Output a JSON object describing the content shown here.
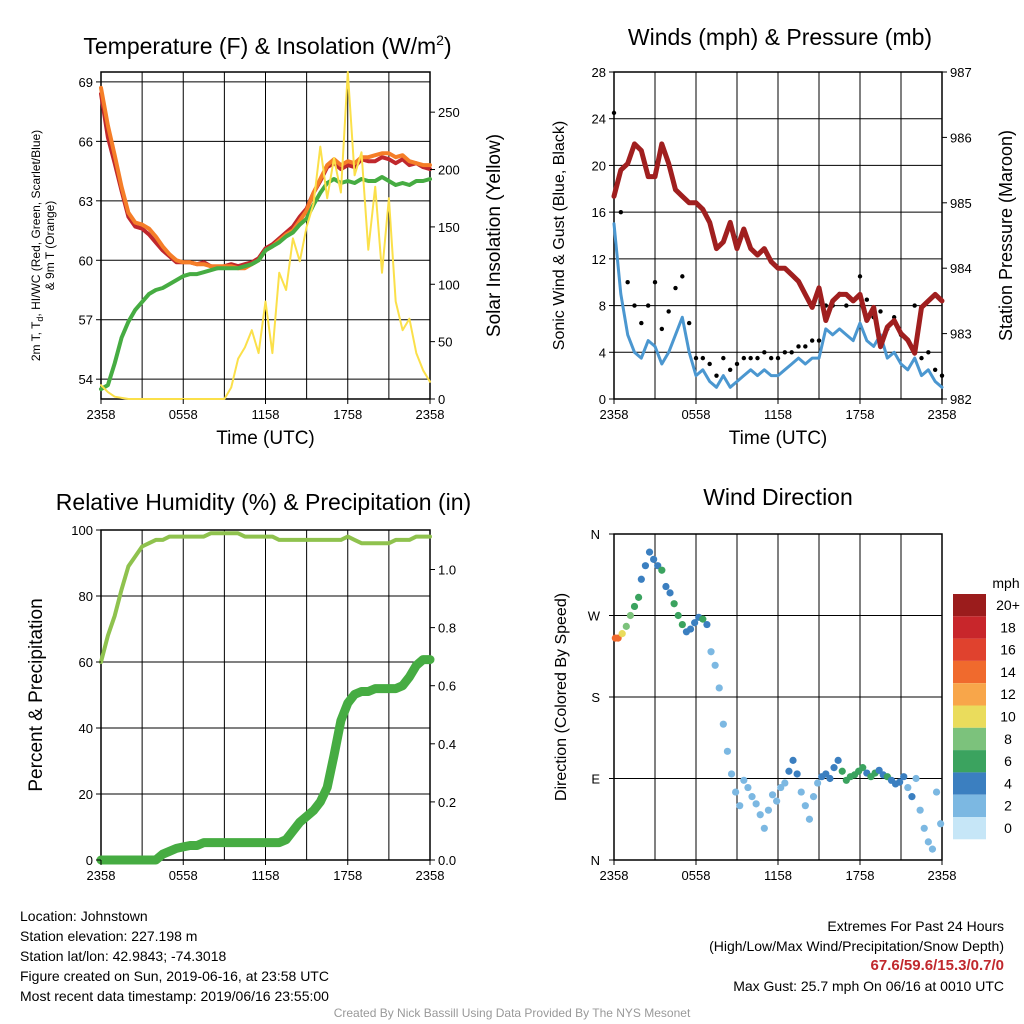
{
  "colors": {
    "red": "#c0282d",
    "orange": "#f57e28",
    "green": "#46ac42",
    "light_green": "#8fc24e",
    "yellow": "#fbe04a",
    "blue": "#4b97d0",
    "black": "#000000",
    "maroon": "#a01f1f"
  },
  "time_ticks": [
    "2358",
    "0558",
    "1158",
    "1758",
    "2358"
  ],
  "chart_data": [
    {
      "type": "line",
      "title": "Temperature (F) & Insolation (W/m²)",
      "xlabel": "Time (UTC)",
      "ylabel": "2m T, Td, HI/WC (Red, Green, Scarlet/Blue) & 9m T (Orange)",
      "ylabel_lines": [
        "2m T, T",
        "d",
        ", HI/WC (Red, Green, Scarlet/Blue)",
        "& 9m T (Orange)"
      ],
      "y2label": "Solar Insolation (Yellow)",
      "x_range_hours": [
        0,
        24
      ],
      "ylim": [
        53,
        69.5
      ],
      "y2lim": [
        0,
        285
      ],
      "y_ticks": [
        54,
        57,
        60,
        63,
        66,
        69
      ],
      "y2_ticks": [
        0,
        50,
        100,
        150,
        200,
        250
      ],
      "x": [
        0,
        0.5,
        1,
        1.5,
        2,
        2.5,
        3,
        3.5,
        4,
        4.5,
        5,
        5.5,
        6,
        6.5,
        7,
        7.5,
        8,
        8.5,
        9,
        9.5,
        10,
        10.5,
        11,
        11.5,
        12,
        12.5,
        13,
        13.5,
        14,
        14.5,
        15,
        15.5,
        16,
        16.5,
        17,
        17.5,
        18,
        18.5,
        19,
        19.5,
        20,
        20.5,
        21,
        21.5,
        22,
        22.5,
        23,
        23.5,
        24
      ],
      "series": [
        {
          "name": "2m T",
          "color_key": "red",
          "values": [
            68.4,
            66.2,
            64.9,
            63.5,
            62.2,
            61.7,
            61.6,
            61.3,
            60.9,
            60.5,
            60.2,
            59.9,
            59.9,
            59.9,
            59.8,
            59.9,
            59.7,
            59.6,
            59.7,
            59.8,
            59.7,
            59.8,
            59.9,
            60.1,
            60.6,
            60.8,
            61.1,
            61.4,
            61.7,
            62.2,
            62.6,
            63.4,
            64.0,
            64.7,
            64.9,
            64.6,
            64.8,
            64.7,
            65.1,
            65.0,
            65.0,
            65.2,
            65.1,
            64.9,
            65.1,
            64.8,
            64.9,
            64.7,
            64.6
          ]
        },
        {
          "name": "9m T",
          "color_key": "orange",
          "values": [
            68.7,
            66.8,
            65.3,
            63.7,
            62.4,
            61.9,
            61.8,
            61.6,
            61.2,
            60.7,
            60.3,
            60.0,
            59.9,
            59.9,
            59.8,
            59.8,
            59.7,
            59.7,
            59.7,
            59.7,
            59.6,
            59.6,
            59.8,
            60.0,
            60.5,
            60.7,
            61.0,
            61.3,
            61.5,
            62.0,
            62.5,
            63.4,
            64.1,
            64.8,
            65.1,
            64.8,
            65.0,
            64.9,
            65.2,
            65.2,
            65.3,
            65.4,
            65.4,
            65.2,
            65.3,
            65.0,
            64.9,
            64.8,
            64.8
          ]
        },
        {
          "name": "Td",
          "color_key": "green",
          "values": [
            53.5,
            53.7,
            54.8,
            56.1,
            56.9,
            57.5,
            57.9,
            58.3,
            58.5,
            58.6,
            58.8,
            59.0,
            59.2,
            59.3,
            59.3,
            59.4,
            59.5,
            59.6,
            59.6,
            59.6,
            59.6,
            59.7,
            59.8,
            60.0,
            60.5,
            60.7,
            60.9,
            61.2,
            61.4,
            61.8,
            62.1,
            62.8,
            63.4,
            63.9,
            64.1,
            63.9,
            64.0,
            63.9,
            64.1,
            64.0,
            64.0,
            64.2,
            64.0,
            63.8,
            63.9,
            63.8,
            64.0,
            64.0,
            64.1
          ]
        },
        {
          "name": "Solar Insolation",
          "color_key": "yellow",
          "axis": "right",
          "values": [
            12,
            6,
            2,
            1,
            0,
            0,
            0,
            0,
            0,
            0,
            0,
            0,
            0,
            0,
            0,
            0,
            0,
            0,
            0,
            10,
            35,
            45,
            60,
            40,
            85,
            40,
            110,
            95,
            140,
            120,
            150,
            170,
            220,
            175,
            210,
            180,
            285,
            195,
            215,
            130,
            185,
            110,
            175,
            85,
            60,
            70,
            40,
            25,
            15
          ]
        }
      ]
    },
    {
      "type": "line",
      "title": "Winds (mph) & Pressure (mb)",
      "xlabel": "Time (UTC)",
      "ylabel": "Sonic Wind & Gust (Blue, Black)",
      "y2label": "Station Pressure (Maroon)",
      "x_range_hours": [
        0,
        24
      ],
      "ylim": [
        0,
        28
      ],
      "y2lim": [
        982,
        987
      ],
      "y_ticks": [
        0,
        4,
        8,
        12,
        16,
        20,
        24,
        28
      ],
      "y2_ticks": [
        982,
        983,
        984,
        985,
        986,
        987
      ],
      "x": [
        0,
        0.5,
        1,
        1.5,
        2,
        2.5,
        3,
        3.5,
        4,
        4.5,
        5,
        5.5,
        6,
        6.5,
        7,
        7.5,
        8,
        8.5,
        9,
        9.5,
        10,
        10.5,
        11,
        11.5,
        12,
        12.5,
        13,
        13.5,
        14,
        14.5,
        15,
        15.5,
        16,
        16.5,
        17,
        17.5,
        18,
        18.5,
        19,
        19.5,
        20,
        20.5,
        21,
        21.5,
        22,
        22.5,
        23,
        23.5,
        24
      ],
      "series": [
        {
          "name": "Sonic Wind",
          "color_key": "blue",
          "values": [
            15.0,
            9.0,
            5.5,
            4.0,
            3.5,
            5.0,
            4.5,
            3.0,
            4.0,
            5.5,
            7.0,
            4.0,
            2.0,
            2.5,
            1.5,
            1.0,
            2.0,
            1.0,
            1.5,
            2.0,
            2.5,
            2.0,
            2.5,
            2.0,
            2.0,
            2.5,
            3.0,
            3.5,
            3.0,
            3.5,
            3.5,
            6.0,
            5.5,
            6.0,
            5.5,
            5.0,
            6.5,
            5.0,
            4.5,
            5.5,
            3.5,
            4.0,
            3.0,
            2.5,
            3.5,
            2.0,
            2.5,
            1.5,
            1.0
          ]
        },
        {
          "name": "Gust",
          "color_key": "black",
          "style": "points",
          "values": [
            24.5,
            16.0,
            10.0,
            8.0,
            6.5,
            8.0,
            10.0,
            6.0,
            7.5,
            9.5,
            10.5,
            6.5,
            3.5,
            3.5,
            3.0,
            2.0,
            3.5,
            2.5,
            3.0,
            3.5,
            3.5,
            3.5,
            4.0,
            3.5,
            3.5,
            4.0,
            4.0,
            4.5,
            4.5,
            5.0,
            5.0,
            8.0,
            8.0,
            9.0,
            8.0,
            8.5,
            10.5,
            8.5,
            7.0,
            7.5,
            6.0,
            7.0,
            5.5,
            5.0,
            8.0,
            3.5,
            4.0,
            2.5,
            2.0
          ]
        },
        {
          "name": "Station Pressure",
          "color_key": "maroon",
          "axis": "right",
          "values": [
            985.1,
            985.5,
            985.6,
            985.9,
            985.8,
            985.4,
            985.4,
            985.9,
            985.6,
            985.2,
            985.1,
            985.0,
            985.0,
            984.9,
            984.7,
            984.3,
            984.4,
            984.7,
            984.3,
            984.6,
            984.3,
            984.2,
            984.3,
            984.1,
            984.0,
            984.0,
            983.9,
            983.8,
            983.6,
            983.4,
            983.7,
            983.2,
            983.5,
            983.6,
            983.6,
            983.5,
            983.6,
            983.2,
            983.4,
            982.8,
            983.1,
            983.2,
            983.0,
            982.9,
            982.7,
            983.4,
            983.5,
            983.6,
            983.5
          ]
        }
      ]
    },
    {
      "type": "line",
      "title": "Relative Humidity (%) & Precipitation (in)",
      "ylabel": "Percent & Precipitation",
      "x_range_hours": [
        0,
        24
      ],
      "ylim": [
        0,
        100
      ],
      "y2lim": [
        0,
        1.136
      ],
      "y_ticks": [
        0,
        20,
        40,
        60,
        80,
        100
      ],
      "y2_ticks": [
        0.0,
        0.2,
        0.4,
        0.6,
        0.8,
        1.0
      ],
      "x": [
        0,
        0.5,
        1,
        1.5,
        2,
        2.5,
        3,
        3.5,
        4,
        4.5,
        5,
        5.5,
        6,
        6.5,
        7,
        7.5,
        8,
        8.5,
        9,
        9.5,
        10,
        10.5,
        11,
        11.5,
        12,
        12.5,
        13,
        13.5,
        14,
        14.5,
        15,
        15.5,
        16,
        16.5,
        17,
        17.5,
        18,
        18.5,
        19,
        19.5,
        20,
        20.5,
        21,
        21.5,
        22,
        22.5,
        23,
        23.5,
        24
      ],
      "series": [
        {
          "name": "Relative Humidity",
          "color_key": "light_green",
          "values": [
            60,
            68,
            74,
            82,
            89,
            92,
            95,
            96,
            97,
            97,
            98,
            98,
            98,
            98,
            98,
            98,
            99,
            99,
            99,
            99,
            99,
            98,
            98,
            98,
            98,
            98,
            97,
            97,
            97,
            97,
            97,
            97,
            97,
            97,
            97,
            97,
            98,
            97,
            96,
            96,
            96,
            96,
            96,
            97,
            97,
            97,
            98,
            98,
            98
          ]
        },
        {
          "name": "Precipitation",
          "color_key": "green",
          "axis": "right",
          "values": [
            0.0,
            0.0,
            0.0,
            0.0,
            0.0,
            0.0,
            0.0,
            0.0,
            0.0,
            0.02,
            0.03,
            0.04,
            0.045,
            0.05,
            0.05,
            0.06,
            0.06,
            0.06,
            0.06,
            0.06,
            0.06,
            0.06,
            0.06,
            0.06,
            0.06,
            0.06,
            0.06,
            0.07,
            0.1,
            0.13,
            0.15,
            0.17,
            0.2,
            0.25,
            0.36,
            0.48,
            0.54,
            0.57,
            0.58,
            0.58,
            0.59,
            0.59,
            0.59,
            0.59,
            0.6,
            0.63,
            0.67,
            0.69,
            0.69
          ]
        }
      ]
    },
    {
      "type": "scatter",
      "title": "Wind Direction",
      "ylabel": "Direction (Colored By Speed)",
      "x_range_hours": [
        0,
        24
      ],
      "y_ticks": [
        "N",
        "E",
        "S",
        "W",
        "N"
      ],
      "ylim_degrees": [
        0,
        360
      ],
      "legend_title": "mph",
      "legend_labels": [
        "20+",
        "18",
        "16",
        "14",
        "12",
        "10",
        "8",
        "6",
        "4",
        "2",
        "0"
      ],
      "legend_colors": [
        "#9b1c1c",
        "#c8262b",
        "#e0422e",
        "#f06a2d",
        "#f8a64a",
        "#eadc5c",
        "#7cc27c",
        "#3ba35f",
        "#3b7fc0",
        "#7cb8e2",
        "#c6e6f7"
      ],
      "x": [
        0.1,
        0.3,
        0.6,
        0.9,
        1.2,
        1.5,
        1.8,
        2.0,
        2.3,
        2.6,
        2.9,
        3.2,
        3.5,
        3.8,
        4.1,
        4.4,
        4.7,
        5.0,
        5.3,
        5.6,
        5.9,
        6.2,
        6.5,
        6.8,
        7.1,
        7.4,
        7.7,
        8.0,
        8.3,
        8.6,
        8.9,
        9.2,
        9.5,
        9.8,
        10.1,
        10.4,
        10.7,
        11.0,
        11.3,
        11.6,
        11.9,
        12.2,
        12.5,
        12.8,
        13.1,
        13.4,
        13.7,
        14.0,
        14.3,
        14.6,
        14.9,
        15.2,
        15.5,
        15.8,
        16.1,
        16.4,
        16.7,
        17.0,
        17.3,
        17.6,
        17.9,
        18.2,
        18.5,
        18.8,
        19.1,
        19.4,
        19.7,
        20.0,
        20.3,
        20.6,
        20.9,
        21.2,
        21.5,
        21.8,
        22.1,
        22.4,
        22.7,
        23.0,
        23.3,
        23.6,
        23.9
      ],
      "directions": [
        245,
        245,
        250,
        258,
        270,
        280,
        290,
        310,
        325,
        340,
        332,
        325,
        320,
        302,
        295,
        283,
        270,
        260,
        252,
        255,
        262,
        268,
        266,
        260,
        230,
        215,
        190,
        150,
        120,
        95,
        75,
        60,
        88,
        80,
        70,
        62,
        50,
        35,
        55,
        72,
        65,
        80,
        85,
        98,
        110,
        95,
        75,
        60,
        45,
        70,
        85,
        92,
        95,
        90,
        102,
        110,
        98,
        88,
        92,
        94,
        98,
        102,
        96,
        92,
        96,
        99,
        94,
        92,
        88,
        84,
        86,
        92,
        80,
        70,
        90,
        55,
        35,
        20,
        12,
        75,
        40
      ],
      "speeds": [
        14,
        13,
        10,
        8,
        7,
        6,
        5,
        4,
        4,
        3,
        3,
        4,
        5,
        4,
        4,
        6,
        6,
        5,
        4,
        4,
        4,
        4,
        5,
        3,
        2,
        2,
        2,
        2,
        1,
        2,
        1,
        2,
        2,
        2,
        1,
        2,
        2,
        2,
        1,
        2,
        2,
        2,
        2,
        3,
        3,
        3,
        2,
        2,
        2,
        2,
        2,
        3,
        3,
        3,
        4,
        4,
        5,
        6,
        5,
        5,
        6,
        6,
        4,
        5,
        5,
        4,
        4,
        5,
        3,
        3,
        4,
        3,
        2,
        3,
        2,
        1,
        1,
        1,
        1,
        1,
        1
      ]
    }
  ],
  "info": {
    "location": "Location: Johnstown",
    "elevation": "Station elevation: 227.198 m",
    "latlon": "Station lat/lon: 42.9843; -74.3018",
    "created": "Figure created on Sun, 2019-06-16, at 23:58 UTC",
    "recent": "Most recent data timestamp: 2019/06/16 23:55:00"
  },
  "extremes": {
    "title": "Extremes For Past 24 Hours",
    "subtitle": "(High/Low/Max Wind/Precipitation/Snow Depth)",
    "values": "67.6/59.6/15.3/0.7/0",
    "max_gust": "Max Gust: 25.7 mph On 06/16 at 0010 UTC"
  },
  "credit": "Created By Nick Bassill Using Data Provided By The NYS Mesonet"
}
